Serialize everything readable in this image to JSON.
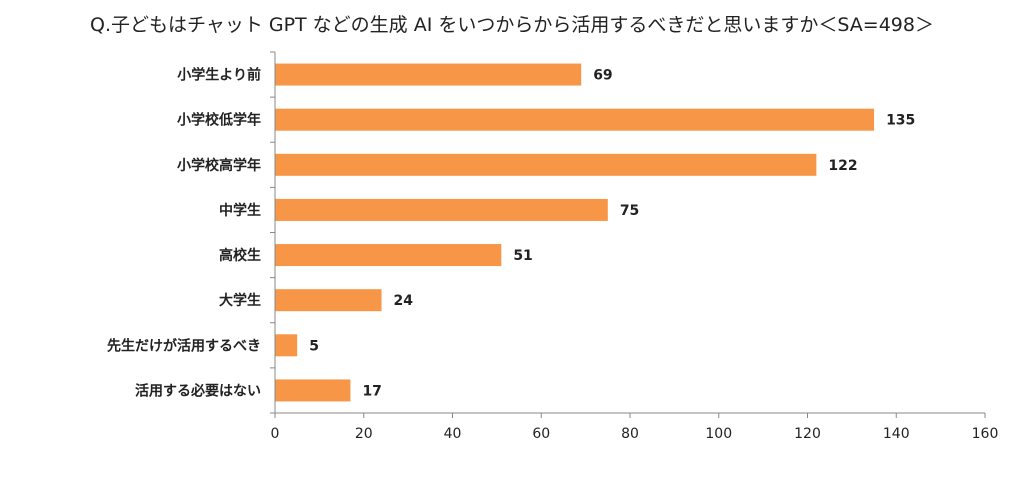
{
  "chart_data": {
    "type": "bar",
    "orientation": "horizontal",
    "title": "Q.子どもはチャット GPT などの生成 AI をいつからから活用するべきだと思いますか＜SA=498＞",
    "categories": [
      "小学生より前",
      "小学校低学年",
      "小学校高学年",
      "中学生",
      "高校生",
      "大学生",
      "先生だけが活用するべき",
      "活用する必要はない"
    ],
    "values": [
      69,
      135,
      122,
      75,
      51,
      24,
      5,
      17
    ],
    "xlim": [
      0,
      160
    ],
    "xticks": [
      0,
      20,
      40,
      60,
      80,
      100,
      120,
      140,
      160
    ],
    "grid": false,
    "bar_color": "#F79646"
  }
}
